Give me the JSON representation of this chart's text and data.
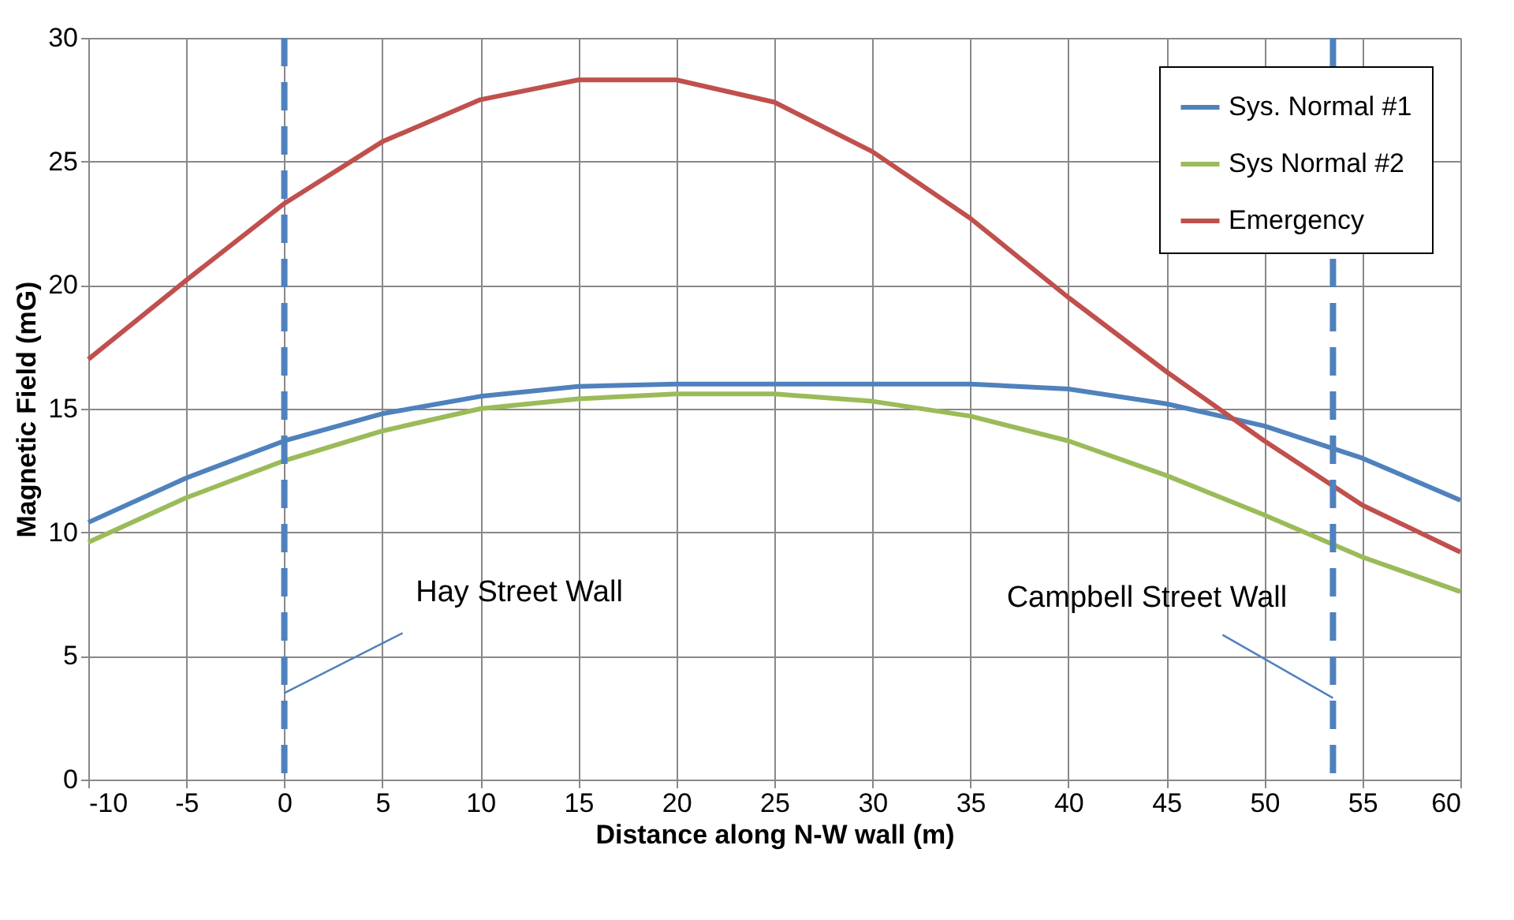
{
  "chart_data": {
    "type": "line",
    "xlabel": "Distance along N-W wall (m)",
    "ylabel": "Magnetic Field (mG)",
    "x": [
      -10,
      -5,
      0,
      5,
      10,
      15,
      20,
      25,
      30,
      35,
      40,
      45,
      50,
      55,
      60
    ],
    "series": [
      {
        "name": "Sys. Normal #1",
        "color": "#4f81bd",
        "values": [
          10.4,
          12.2,
          13.7,
          14.8,
          15.5,
          15.9,
          16.0,
          16.0,
          16.0,
          16.0,
          15.8,
          15.2,
          14.3,
          13.0,
          11.3
        ]
      },
      {
        "name": "Sys Normal  #2",
        "color": "#9bbb59",
        "values": [
          9.6,
          11.4,
          12.9,
          14.1,
          15.0,
          15.4,
          15.6,
          15.6,
          15.3,
          14.7,
          13.7,
          12.3,
          10.7,
          9.0,
          7.6
        ]
      },
      {
        "name": "Emergency",
        "color": "#c0504d",
        "values": [
          17.0,
          20.2,
          23.3,
          25.8,
          27.5,
          28.3,
          28.3,
          27.4,
          25.4,
          22.7,
          19.5,
          16.5,
          13.7,
          11.1,
          9.2
        ]
      }
    ],
    "xlim": [
      -10,
      60
    ],
    "xticks": [
      -10,
      -5,
      0,
      5,
      10,
      15,
      20,
      25,
      30,
      35,
      40,
      45,
      50,
      55,
      60
    ],
    "ylim": [
      0,
      30
    ],
    "yticks": [
      0,
      5,
      10,
      15,
      20,
      25,
      30
    ],
    "ref_lines": [
      {
        "axis": "x",
        "value": 0,
        "color": "#4f81bd",
        "line_style": "dashed"
      },
      {
        "axis": "x",
        "value": 53.5,
        "color": "#4f81bd",
        "line_style": "dashed"
      }
    ],
    "annotations": [
      {
        "text": "Hay Street Wall",
        "x": 0,
        "y": 3.5
      },
      {
        "text": "Campbell Street Wall",
        "x": 53.5,
        "y": 3.3
      }
    ],
    "grid": true,
    "legend": "top right",
    "marker": "none",
    "line_style": "solid"
  }
}
